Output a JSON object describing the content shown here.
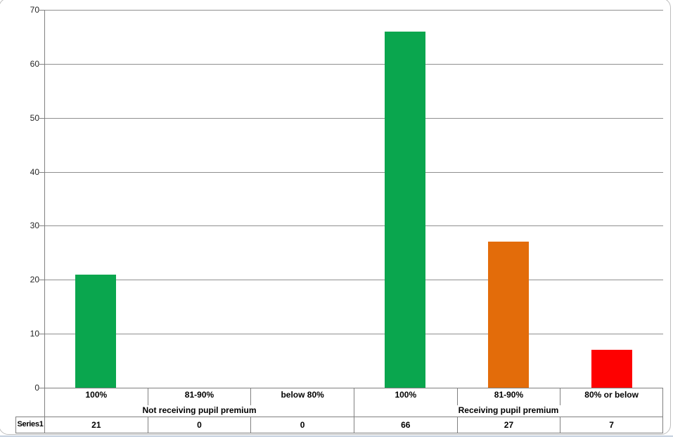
{
  "chart_data": {
    "type": "bar",
    "title": "",
    "xlabel": "",
    "ylabel": "",
    "ylim": [
      0,
      70
    ],
    "yticks": [
      0,
      10,
      20,
      30,
      40,
      50,
      60,
      70
    ],
    "grid": true,
    "legend_position": "none (data table below chart)",
    "categories": [
      "100%",
      "81-90%",
      "below 80%",
      "100%",
      "81-90%",
      "80% or below"
    ],
    "category_groups": [
      {
        "label": "Not receiving pupil premium",
        "span": 3
      },
      {
        "label": "Receiving pupil premium",
        "span": 3
      }
    ],
    "series": [
      {
        "name": "Series1",
        "values": [
          21,
          0,
          0,
          66,
          27,
          7
        ]
      }
    ],
    "bar_colors": [
      "#0aa64e",
      "#0aa64e",
      "#0aa64e",
      "#0aa64e",
      "#e36c0a",
      "#fe0101"
    ]
  },
  "data_table": {
    "series_label": "Series1",
    "values": [
      "21",
      "0",
      "0",
      "66",
      "27",
      "7"
    ]
  },
  "colors": {
    "gridline": "#8f8f8f",
    "axis": "#808080",
    "table_border": "#808080",
    "frame_border": "#bdbdbd",
    "bottom_edge": "#c3cfde",
    "green": "#0aa64e",
    "orange": "#e36c0a",
    "red": "#fe0101"
  }
}
